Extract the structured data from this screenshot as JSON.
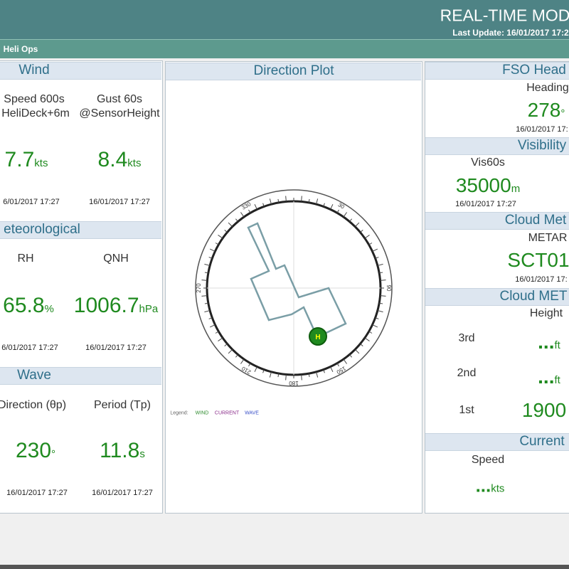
{
  "header": {
    "title": "REAL-TIME MOD",
    "last_update": "Last Update: 16/01/2017 17:2"
  },
  "nav": {
    "item": "Heli Ops"
  },
  "left": {
    "wind": {
      "title": "Wind",
      "cells": [
        {
          "label": [
            "Speed 600s",
            "HeliDeck+6m"
          ],
          "value": 7.7,
          "unit": "kts",
          "time": "6/01/2017 17:27"
        },
        {
          "label": [
            "Gust 60s",
            "@SensorHeight"
          ],
          "value": 8.4,
          "unit": "kts",
          "time": "16/01/2017 17:27"
        }
      ]
    },
    "meteorological": {
      "title": "eteorological",
      "cells": [
        {
          "label": "RH",
          "value": 65.8,
          "unit": "%",
          "time": "6/01/2017 17:27"
        },
        {
          "label": "QNH",
          "value": 1006.7,
          "unit": "hPa",
          "time": "16/01/2017 17:27"
        }
      ]
    },
    "wave": {
      "title": "Wave",
      "cells": [
        {
          "label": "Direction (θp)",
          "value": 230,
          "unit": "°",
          "time": "16/01/2017 17:27"
        },
        {
          "label": "Period (Tp)",
          "value": 11.8,
          "unit": "s",
          "time": "16/01/2017 17:27"
        }
      ]
    }
  },
  "direction_plot": {
    "title": "Direction Plot",
    "compass_labels": [
      330,
      30,
      90,
      150,
      180,
      210,
      270
    ],
    "legend": {
      "title": "Legend:",
      "items": [
        "WIND",
        "CURRENT",
        "WAVE"
      ]
    }
  },
  "right": {
    "fso": {
      "title": "FSO Head",
      "label": "Heading",
      "value": 278,
      "unit": "°",
      "time": "16/01/2017 17:"
    },
    "visibility": {
      "title": "Visibility",
      "label": "Vis60s",
      "value": 35000,
      "unit": "m",
      "time": "16/01/2017 17:27"
    },
    "cloud_metar": {
      "title": "Cloud Met",
      "label": "METAR",
      "value": "SCT01",
      "time": "16/01/2017 17:"
    },
    "cloud_met": {
      "title": "Cloud MET",
      "label": "Height",
      "rows": [
        {
          "layer": "3rd",
          "value": "...",
          "unit": "ft"
        },
        {
          "layer": "2nd",
          "value": "...",
          "unit": "ft"
        },
        {
          "layer": "1st",
          "value": 1900
        }
      ]
    },
    "current": {
      "title": "Current",
      "label": "Speed",
      "value": "...",
      "unit": "kts"
    }
  }
}
